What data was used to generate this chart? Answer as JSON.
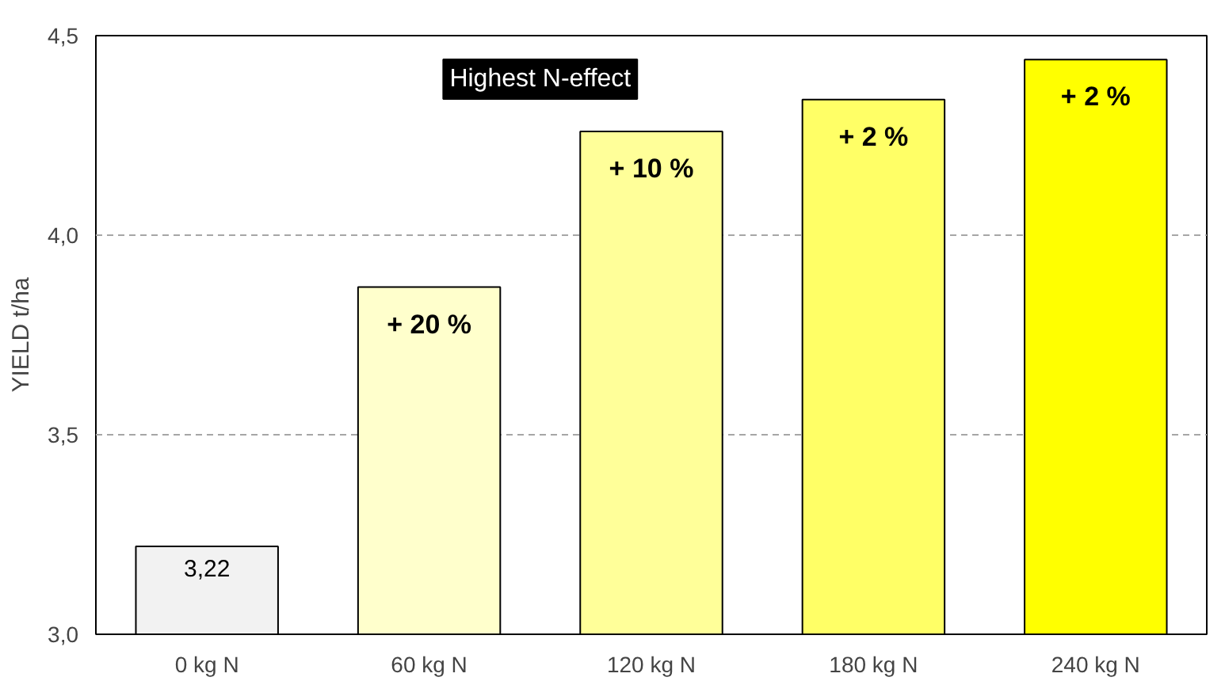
{
  "chart_data": {
    "type": "bar",
    "ylabel": "YIELD t/ha",
    "categories": [
      "0 kg N",
      "60 kg N",
      "120 kg N",
      "180 kg N",
      "240 kg N"
    ],
    "values": [
      3.22,
      3.87,
      4.26,
      4.34,
      4.44
    ],
    "colors": [
      "#f2f2f2",
      "#ffffcc",
      "#ffff99",
      "#ffff66",
      "#ffff00"
    ],
    "value_labels": [
      "3,22",
      null,
      null,
      null,
      null
    ],
    "ylim": [
      3.0,
      4.5
    ],
    "yticks": [
      {
        "value": 3.0,
        "label": "3,0"
      },
      {
        "value": 3.5,
        "label": "3,5"
      },
      {
        "value": 4.0,
        "label": "4,0"
      },
      {
        "value": 4.5,
        "label": "4,5"
      }
    ],
    "grid": "y",
    "annotations": [
      "Highest N-effect",
      {
        "text": "+ 20 %",
        "x": "60 kg N",
        "y": 3.87
      },
      {
        "text": "+ 10 %",
        "x": "120 kg N",
        "y": 4.26
      },
      {
        "text": "+ 2 %",
        "x": "180 kg N",
        "y": 4.34
      },
      {
        "text": "+ 2 %",
        "x": "240 kg N",
        "y": 4.44
      }
    ]
  }
}
